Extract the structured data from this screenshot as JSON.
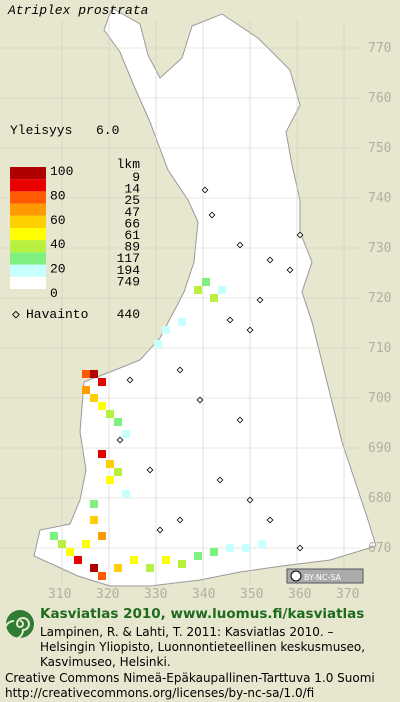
{
  "map": {
    "title": "Atriplex prostrata",
    "frequency": {
      "label": "Yleisyys",
      "value": "6.0"
    },
    "legend": {
      "scale_labels": [
        100,
        80,
        60,
        40,
        20,
        0
      ],
      "count_header": "lkm",
      "counts": [
        9,
        14,
        25,
        47,
        66,
        61,
        89,
        117,
        194,
        749
      ],
      "observations": {
        "label": "Havainto",
        "value": 440
      }
    },
    "grid": {
      "northing_labels": [
        770,
        760,
        750,
        740,
        730,
        720,
        710,
        700,
        690,
        680,
        670
      ],
      "easting_labels": [
        310,
        320,
        330,
        340,
        350,
        360,
        370
      ]
    },
    "license_badge": "BY-NC-SA"
  },
  "footer": {
    "title": "Kasviatlas 2010, www.luomus.fi/kasviatlas",
    "citation": [
      "Lampinen, R. & Lahti, T. 2011: Kasviatlas 2010. –",
      "Helsingin Yliopisto, Luonnontieteellinen keskusmuseo,",
      "Kasvimuseo, Helsinki."
    ],
    "license": [
      "Creative Commons Nimeä-Epäkaupallinen-Tarttuva 1.0 Suomi",
      "http://creativecommons.org/licenses/by-nc-sa/1.0/fi"
    ]
  }
}
